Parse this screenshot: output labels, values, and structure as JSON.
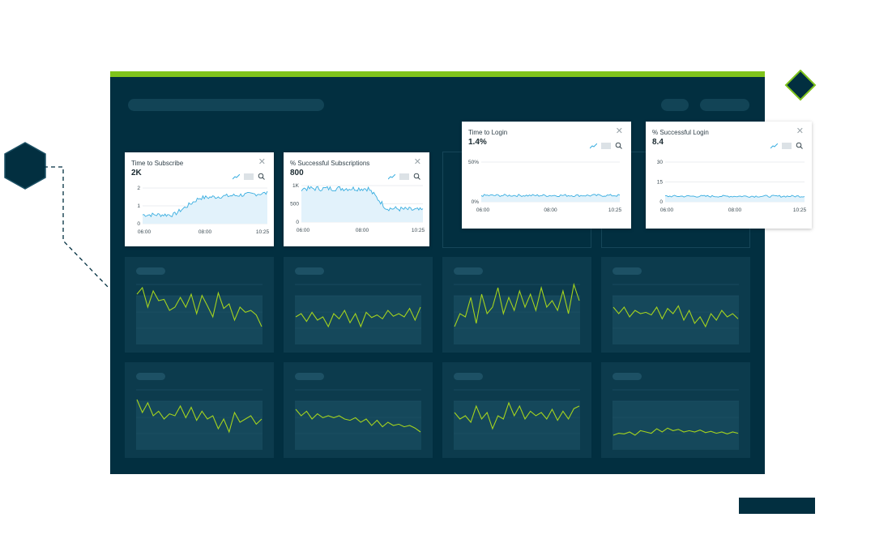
{
  "colors": {
    "dashboard_bg": "#022f40",
    "accent": "#7fc31c",
    "cell_bg": "#0c3b4d",
    "chart_line": "#3aaee0",
    "chart_fill": "#e2f2fb",
    "sparkline": "#a4d31e"
  },
  "cards": [
    {
      "title": "Time to Subscribe",
      "value": "2K",
      "y_ticks": [
        "2",
        "1",
        "0"
      ],
      "x_ticks": [
        "06:00",
        "08:00",
        "10:25"
      ],
      "close_icon": "close-icon",
      "toolbar_icons": [
        "line-chart-icon",
        "bar-chart-icon",
        "zoom-icon"
      ]
    },
    {
      "title": "% Successful Subscriptions",
      "value": "800",
      "y_ticks": [
        "1K",
        "500",
        "0"
      ],
      "x_ticks": [
        "06:00",
        "08:00",
        "10:25"
      ],
      "close_icon": "close-icon",
      "toolbar_icons": [
        "line-chart-icon",
        "bar-chart-icon",
        "zoom-icon"
      ]
    },
    {
      "title": "Time to Login",
      "value": "1.4%",
      "y_ticks": [
        "50%",
        "0%"
      ],
      "x_ticks": [
        "06:00",
        "08:00",
        "10:25"
      ],
      "close_icon": "close-icon",
      "toolbar_icons": [
        "line-chart-icon",
        "bar-chart-icon",
        "zoom-icon"
      ]
    },
    {
      "title": "% Successful Login",
      "value": "8.4",
      "y_ticks": [
        "30",
        "15",
        "0"
      ],
      "x_ticks": [
        "06:00",
        "08:00",
        "10:25"
      ],
      "close_icon": "close-icon",
      "toolbar_icons": [
        "line-chart-icon",
        "bar-chart-icon",
        "zoom-icon"
      ]
    }
  ],
  "decorations": {
    "left_badge": "hexagon-icon",
    "right_badge": "diamond-icon"
  }
}
